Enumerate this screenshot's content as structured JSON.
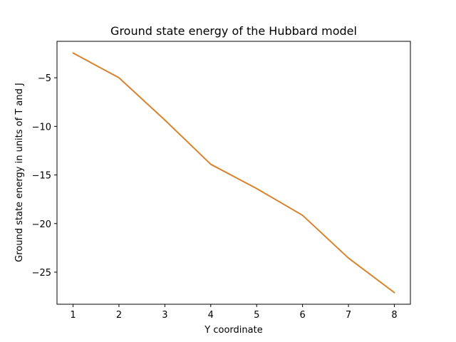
{
  "chart_data": {
    "type": "line",
    "title": "Ground state energy of the Hubbard model",
    "xlabel": "Y coordinate",
    "ylabel": "Ground state energy in units of T and J",
    "x": [
      1,
      2,
      3,
      4,
      5,
      6,
      7,
      8
    ],
    "series": [
      {
        "values": [
          -2.45,
          -5.0,
          -9.35,
          -13.9,
          -16.4,
          -19.15,
          -23.55,
          -27.1
        ],
        "color": "#d9822b"
      }
    ],
    "xlim": [
      0.65,
      8.35
    ],
    "ylim": [
      -28.3,
      -1.25
    ],
    "xticks": [
      1,
      2,
      3,
      4,
      5,
      6,
      7,
      8
    ],
    "yticks": [
      -5,
      -10,
      -15,
      -20,
      -25
    ],
    "ytick_labels": [
      "−5",
      "−10",
      "−15",
      "−20",
      "−25"
    ],
    "grid": false
  }
}
